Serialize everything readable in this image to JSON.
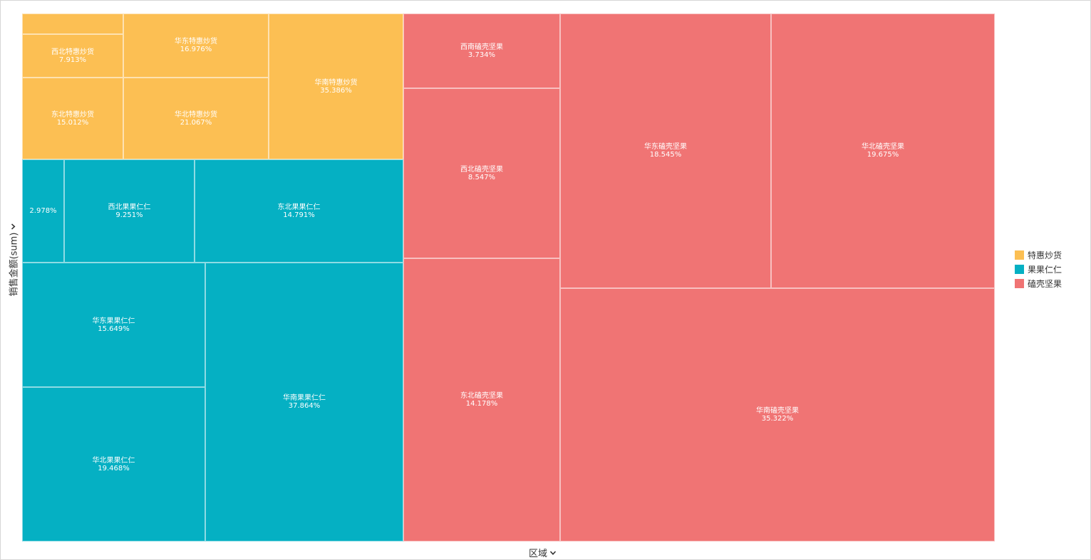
{
  "chart_data": {
    "type": "treemap",
    "xlabel": "区域",
    "ylabel": "销售金额(sum)",
    "legend": [
      {
        "name": "特惠炒货",
        "color": "#fcbf53"
      },
      {
        "name": "果果仁仁",
        "color": "#05b0c3"
      },
      {
        "name": "磕壳坚果",
        "color": "#f07474"
      }
    ],
    "legend_position": "right",
    "groups": [
      {
        "name": "特惠炒货",
        "color": "#fcbf53",
        "children": [
          {
            "label": "",
            "percent": ""
          },
          {
            "label": "西北特惠炒货",
            "percent": "7.913%"
          },
          {
            "label": "东北特惠炒货",
            "percent": "15.012%"
          },
          {
            "label": "华东特惠炒货",
            "percent": "16.976%"
          },
          {
            "label": "华北特惠炒货",
            "percent": "21.067%"
          },
          {
            "label": "华南特惠炒货",
            "percent": "35.386%"
          }
        ]
      },
      {
        "name": "果果仁仁",
        "color": "#05b0c3",
        "children": [
          {
            "label": "",
            "percent": "2.978%"
          },
          {
            "label": "西北果果仁仁",
            "percent": "9.251%"
          },
          {
            "label": "东北果果仁仁",
            "percent": "14.791%"
          },
          {
            "label": "华东果果仁仁",
            "percent": "15.649%"
          },
          {
            "label": "华北果果仁仁",
            "percent": "19.468%"
          },
          {
            "label": "华南果果仁仁",
            "percent": "37.864%"
          }
        ]
      },
      {
        "name": "磕壳坚果",
        "color": "#f07474",
        "children": [
          {
            "label": "西南磕壳坚果",
            "percent": "3.734%"
          },
          {
            "label": "西北磕壳坚果",
            "percent": "8.547%"
          },
          {
            "label": "东北磕壳坚果",
            "percent": "14.178%"
          },
          {
            "label": "华东磕壳坚果",
            "percent": "18.545%"
          },
          {
            "label": "华北磕壳坚果",
            "percent": "19.675%"
          },
          {
            "label": "华南磕壳坚果",
            "percent": "35.322%"
          }
        ]
      }
    ]
  }
}
